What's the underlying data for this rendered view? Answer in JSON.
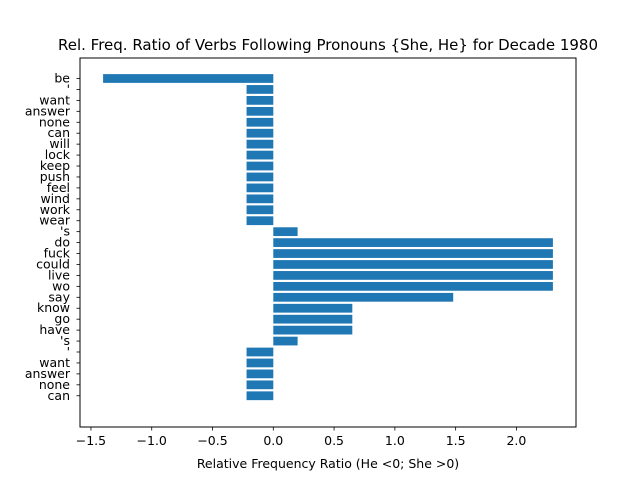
{
  "chart_data": {
    "type": "bar",
    "orientation": "horizontal",
    "title": "Rel. Freq. Ratio of Verbs Following Pronouns {She, He} for Decade 1980",
    "xlabel": "Relative Frequency Ratio (He <0; She >0)",
    "ylabel": "",
    "xlim": [
      -1.59,
      2.49
    ],
    "xticks": [
      -1.5,
      -1.0,
      -0.5,
      0.0,
      0.5,
      1.0,
      1.5,
      2.0
    ],
    "xtick_labels": [
      "−1.5",
      "−1.0",
      "−0.5",
      "0.0",
      "0.5",
      "1.0",
      "1.5",
      "2.0"
    ],
    "grid": false,
    "bar_color": "#1f77b4",
    "categories": [
      "be",
      "'",
      "want",
      "answer",
      "none",
      "can",
      "will",
      "lock",
      "keep",
      "push",
      "feel",
      "wind",
      "work",
      "wear",
      "'s",
      "do",
      "fuck",
      "could",
      "live",
      "wo",
      "say",
      "know",
      "go",
      "have",
      "'s",
      "'",
      "want",
      "answer",
      "none",
      "can"
    ],
    "values": [
      -1.4,
      -0.22,
      -0.22,
      -0.22,
      -0.22,
      -0.22,
      -0.22,
      -0.22,
      -0.22,
      -0.22,
      -0.22,
      -0.22,
      -0.22,
      -0.22,
      0.2,
      2.3,
      2.3,
      2.3,
      2.3,
      2.3,
      1.48,
      0.65,
      0.65,
      0.65,
      0.2,
      -0.22,
      -0.22,
      -0.22,
      -0.22,
      -0.22
    ]
  }
}
